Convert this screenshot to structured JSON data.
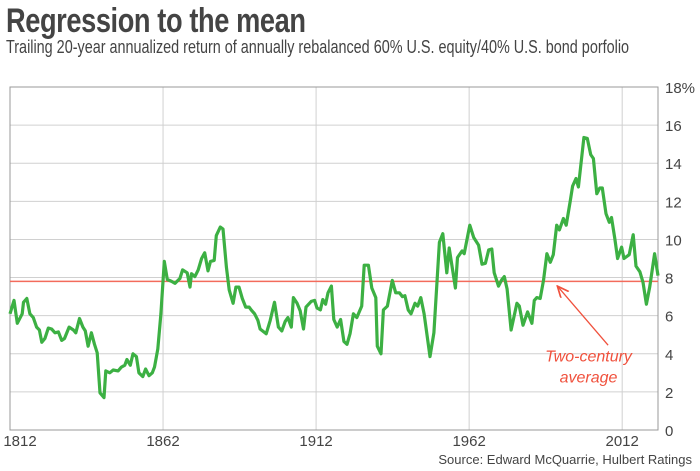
{
  "chart_data": {
    "type": "line",
    "title": "Regression to the mean",
    "subtitle": "Trailing 20-year annualized return of annually rebalanced 60% U.S. equity/40% U.S. bond porfolio",
    "source": "Source: Edward McQuarrie, Hulbert Ratings",
    "xlim": [
      1812,
      2023.7
    ],
    "ylim": [
      0,
      18
    ],
    "x_ticks": [
      1812,
      1862,
      1912,
      1962,
      2012
    ],
    "x_tick_labels": [
      "1812",
      "1862",
      "1912",
      "1962",
      "2012"
    ],
    "y_ticks": [
      0,
      2,
      4,
      6,
      8,
      10,
      12,
      14,
      16,
      18
    ],
    "y_tick_labels": [
      "0",
      "2",
      "4",
      "6",
      "8",
      "10",
      "12",
      "14",
      "16",
      "18%"
    ],
    "y_axis_side": "right",
    "grid": true,
    "colors": {
      "series": "#3cb043",
      "average": "#f36b5c",
      "annotation": "#f0513d",
      "grid": "#d0d0d0",
      "text": "#444444"
    },
    "reference_line": {
      "value": 7.8,
      "label": "Two-century average"
    },
    "annotation": {
      "lines": [
        "Two-century",
        "average"
      ],
      "text_at": [
        2001,
        3.6
      ],
      "arrow_from": [
        2007.4,
        4.45
      ],
      "arrow_to": [
        1991.1,
        7.5
      ]
    },
    "series": [
      {
        "x": [
          1812,
          1813.3,
          1814.4,
          1816,
          1816.4,
          1817.5,
          1818.5,
          1819.6,
          1820.7,
          1821.6,
          1822.4,
          1823.4,
          1824.5,
          1825.6,
          1826.7,
          1827.8,
          1828.9,
          1829.8,
          1831.3,
          1832.7,
          1833.5,
          1834.7,
          1835.8,
          1836.6,
          1837.5,
          1838.6,
          1839.6,
          1840.5,
          1841.4,
          1842.7,
          1843.3,
          1844.6,
          1845.7,
          1847.3,
          1848.4,
          1849.5,
          1850.2,
          1851.3,
          1852.2,
          1853.3,
          1854.1,
          1855.4,
          1856.3,
          1857.4,
          1858.5,
          1859.2,
          1860.3,
          1861.3,
          1862.4,
          1863.4,
          1864.8,
          1865.9,
          1867.5,
          1868.4,
          1869.9,
          1870.8,
          1871.3,
          1872.4,
          1873.5,
          1874.6,
          1875.6,
          1876.7,
          1877.5,
          1878.7,
          1879.4,
          1880.7,
          1881.6,
          1882.7,
          1883.6,
          1884.9,
          1885.8,
          1886.8,
          1887.9,
          1889,
          1890.1,
          1890.8,
          1891.9,
          1893,
          1893.7,
          1895.7,
          1897,
          1898.4,
          1899.7,
          1900.8,
          1901.9,
          1902.8,
          1903.9,
          1904.6,
          1905.8,
          1906.8,
          1907.9,
          1908.7,
          1910.4,
          1911.5,
          1912.3,
          1913.4,
          1914.2,
          1915.1,
          1915.9,
          1917,
          1917.8,
          1918.9,
          1920,
          1921.1,
          1922.1,
          1923.1,
          1924.2,
          1925.3,
          1926.9,
          1927.7,
          1929.1,
          1930.2,
          1931.5,
          1932,
          1933.2,
          1934,
          1935.3,
          1936.9,
          1938,
          1939.2,
          1940.2,
          1941,
          1942.1,
          1943,
          1944.3,
          1945.2,
          1946.2,
          1947.3,
          1949.2,
          1950.5,
          1952.3,
          1953.4,
          1954.7,
          1955.5,
          1956.5,
          1957.5,
          1958.2,
          1959.7,
          1960.4,
          1962.2,
          1963.5,
          1965.1,
          1966.2,
          1967.3,
          1968.4,
          1969.4,
          1970.2,
          1971.6,
          1972.7,
          1973.5,
          1974.4,
          1975.7,
          1977.6,
          1978.4,
          1979.6,
          1981.1,
          1982.5,
          1983.3,
          1984.1,
          1985.2,
          1986.3,
          1987.4,
          1988.5,
          1989.5,
          1990.6,
          1991.5,
          1992.8,
          1993.7,
          1995,
          1995.8,
          1996.9,
          1997.7,
          1999.5,
          2000.6,
          2001.7,
          2002.6,
          2003.7,
          2004.7,
          2005.5,
          2006.7,
          2007.8,
          2008.5,
          2009.6,
          2010.5,
          2011.8,
          2012.6,
          2014.3,
          2015.6,
          2016.5,
          2017.8,
          2018.8,
          2019.9,
          2021,
          2022.6,
          2023.7
        ],
        "y": [
          6.1,
          6.8,
          5.6,
          6.1,
          6.7,
          6.9,
          6.1,
          5.9,
          5.4,
          5.25,
          4.6,
          4.8,
          5.35,
          5.3,
          5.1,
          5.15,
          4.7,
          4.8,
          5.4,
          5.25,
          5.1,
          5.85,
          5.4,
          5.2,
          4.4,
          5.1,
          4.5,
          4.05,
          1.95,
          1.7,
          3.1,
          3.0,
          3.15,
          3.1,
          3.3,
          3.4,
          3.7,
          3.4,
          4.0,
          3.85,
          3.0,
          2.8,
          3.2,
          2.85,
          3.0,
          3.3,
          4.25,
          6.1,
          8.85,
          7.9,
          7.8,
          7.7,
          7.95,
          8.4,
          8.25,
          7.5,
          8.2,
          8.05,
          8.4,
          9.0,
          9.3,
          8.35,
          8.85,
          8.9,
          10.2,
          10.65,
          10.55,
          8.55,
          7.35,
          6.65,
          7.5,
          7.5,
          6.9,
          6.45,
          6.45,
          6.3,
          6.1,
          5.75,
          5.3,
          5.05,
          5.75,
          6.7,
          5.4,
          5.2,
          5.7,
          5.9,
          5.4,
          6.95,
          6.65,
          6.25,
          5.3,
          6.45,
          6.75,
          6.8,
          6.4,
          6.3,
          6.85,
          6.6,
          7.2,
          7.55,
          5.8,
          5.4,
          5.8,
          4.65,
          4.5,
          5.07,
          6.1,
          5.9,
          6.5,
          8.65,
          8.65,
          7.45,
          6.95,
          4.4,
          4.0,
          6.3,
          6.5,
          7.85,
          7.2,
          7.2,
          7.0,
          7.05,
          6.3,
          6.1,
          6.65,
          6.5,
          6.95,
          6.1,
          3.85,
          5.1,
          9.85,
          10.3,
          8.25,
          9.55,
          8.5,
          7.45,
          9.05,
          9.4,
          9.25,
          10.75,
          10.1,
          9.7,
          8.7,
          8.75,
          9.45,
          9.5,
          8.25,
          7.55,
          7.9,
          8.05,
          7.4,
          5.25,
          6.65,
          6.5,
          5.5,
          6.2,
          5.6,
          6.8,
          6.95,
          6.9,
          7.85,
          9.25,
          8.8,
          9.2,
          10.75,
          10.5,
          11.1,
          10.75,
          12.0,
          12.8,
          13.2,
          12.75,
          15.35,
          15.3,
          14.45,
          14.25,
          12.4,
          12.7,
          12.7,
          11.35,
          10.9,
          11.15,
          10.05,
          9.0,
          9.6,
          9.0,
          9.2,
          10.25,
          8.6,
          8.3,
          7.75,
          6.6,
          7.5,
          9.25,
          8.1
        ]
      }
    ]
  }
}
